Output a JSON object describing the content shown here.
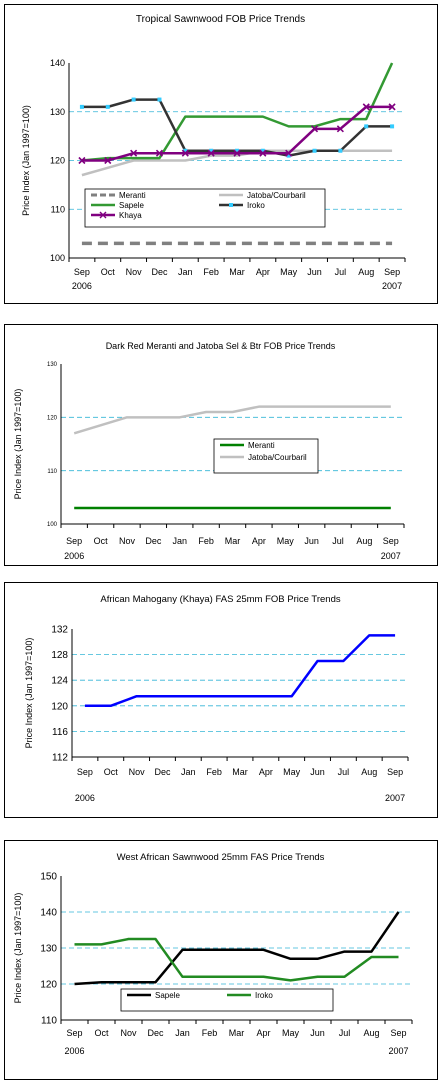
{
  "chart_data": [
    {
      "type": "line",
      "title": "Tropical Sawnwood FOB Price Trends",
      "ylabel": "Price Index (Jan 1997=100)",
      "xlabel": "",
      "categories": [
        "Sep",
        "Oct",
        "Nov",
        "Dec",
        "Jan",
        "Feb",
        "Mar",
        "Apr",
        "May",
        "Jun",
        "Jul",
        "Aug",
        "Sep"
      ],
      "year_labels": [
        {
          "label": "2006",
          "at": 0
        },
        {
          "label": "2007",
          "at": 12
        }
      ],
      "ylim": [
        100,
        140
      ],
      "yticks": [
        100,
        110,
        120,
        130,
        140
      ],
      "grid": true,
      "legend": "inside-bottom",
      "series": [
        {
          "name": "Meranti",
          "color": "#808080",
          "dash": "10,6",
          "marker": "",
          "values": [
            103,
            103,
            103,
            103,
            103,
            103,
            103,
            103,
            103,
            103,
            103,
            103,
            103
          ]
        },
        {
          "name": "Jatoba/Courbaril",
          "color": "#c0c0c0",
          "dash": "",
          "marker": "",
          "values": [
            117,
            118.5,
            120,
            120,
            120,
            121,
            121,
            122,
            122,
            122,
            122,
            122,
            122
          ]
        },
        {
          "name": "Sapele",
          "color": "#339933",
          "dash": "",
          "marker": "",
          "values": [
            120,
            120.5,
            120.5,
            120.5,
            129,
            129,
            129,
            129,
            127,
            127,
            128.5,
            128.5,
            140
          ]
        },
        {
          "name": "Iroko",
          "color": "#333333",
          "dash": "",
          "marker": "square",
          "marker_color": "#33ccff",
          "values": [
            131,
            131,
            132.5,
            132.5,
            122,
            122,
            122,
            122,
            121,
            122,
            122,
            127,
            127
          ]
        },
        {
          "name": "Khaya",
          "color": "#800080",
          "dash": "",
          "marker": "x",
          "marker_color": "#800080",
          "values": [
            120,
            120,
            121.5,
            121.5,
            121.5,
            121.5,
            121.5,
            121.5,
            121.5,
            126.5,
            126.5,
            131,
            131
          ]
        }
      ]
    },
    {
      "type": "line",
      "title": "Dark Red Meranti and Jatoba Sel & Btr FOB Price Trends",
      "ylabel": "Price Index (Jan 1997=100)",
      "xlabel": "",
      "categories": [
        "Sep",
        "Oct",
        "Nov",
        "Dec",
        "Jan",
        "Feb",
        "Mar",
        "Apr",
        "May",
        "Jun",
        "Jul",
        "Aug",
        "Sep"
      ],
      "year_labels": [
        {
          "label": "2006",
          "at": 0
        },
        {
          "label": "2007",
          "at": 12
        }
      ],
      "ylim": [
        100,
        130
      ],
      "yticks": [
        100,
        110,
        120,
        130
      ],
      "grid": true,
      "legend": "inside-center",
      "series": [
        {
          "name": "Meranti",
          "color": "#008000",
          "dash": "",
          "marker": "",
          "values": [
            103,
            103,
            103,
            103,
            103,
            103,
            103,
            103,
            103,
            103,
            103,
            103,
            103
          ]
        },
        {
          "name": "Jatoba/Courbaril",
          "color": "#c0c0c0",
          "dash": "",
          "marker": "",
          "values": [
            117,
            118.5,
            120,
            120,
            120,
            121,
            121,
            122,
            122,
            122,
            122,
            122,
            122
          ]
        }
      ]
    },
    {
      "type": "line",
      "title": "African Mahogany (Khaya) FAS 25mm FOB Price Trends",
      "ylabel": "Price Index (Jan 1997=100)",
      "xlabel": "",
      "categories": [
        "Sep",
        "Oct",
        "Nov",
        "Dec",
        "Jan",
        "Feb",
        "Mar",
        "Apr",
        "May",
        "Jun",
        "Jul",
        "Aug",
        "Sep"
      ],
      "year_labels": [
        {
          "label": "2006",
          "at": 0
        },
        {
          "label": "2007",
          "at": 12
        }
      ],
      "ylim": [
        112,
        132
      ],
      "yticks": [
        112,
        116,
        120,
        124,
        128,
        132
      ],
      "grid": true,
      "legend": "none",
      "series": [
        {
          "name": "",
          "color": "#0000ff",
          "dash": "",
          "marker": "",
          "values": [
            120,
            120,
            121.5,
            121.5,
            121.5,
            121.5,
            121.5,
            121.5,
            121.5,
            127,
            127,
            131,
            131
          ]
        }
      ]
    },
    {
      "type": "line",
      "title": "West African Sawnwood 25mm FAS Price Trends",
      "ylabel": "Price Index (Jan 1997=100)",
      "xlabel": "",
      "categories": [
        "Sep",
        "Oct",
        "Nov",
        "Dec",
        "Jan",
        "Feb",
        "Mar",
        "Apr",
        "May",
        "Jun",
        "Jul",
        "Aug",
        "Sep"
      ],
      "year_labels": [
        {
          "label": "2006",
          "at": 0
        },
        {
          "label": "2007",
          "at": 12
        }
      ],
      "ylim": [
        110,
        150
      ],
      "yticks": [
        110,
        120,
        130,
        140,
        150
      ],
      "grid": true,
      "legend": "inside-bottom",
      "series": [
        {
          "name": "Sapele",
          "color": "#000000",
          "dash": "",
          "marker": "",
          "values": [
            120,
            120.5,
            120.5,
            120.5,
            129.5,
            129.5,
            129.5,
            129.5,
            127,
            127,
            129,
            129,
            140
          ]
        },
        {
          "name": "Iroko",
          "color": "#228b22",
          "dash": "",
          "marker": "",
          "values": [
            131,
            131,
            132.5,
            132.5,
            122,
            122,
            122,
            122,
            121,
            122,
            122,
            127.5,
            127.5
          ]
        }
      ]
    }
  ]
}
